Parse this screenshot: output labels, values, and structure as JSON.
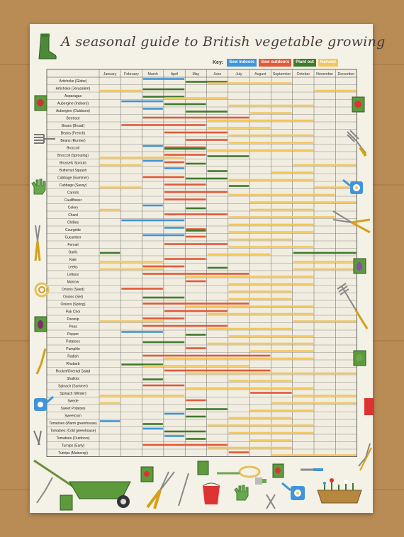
{
  "title": "A seasonal guide to British vegetable growing",
  "key": {
    "label": "Key:",
    "items": [
      {
        "label": "Sow indoors",
        "color": "#3f95d8"
      },
      {
        "label": "Sow outdoors",
        "color": "#e0593a"
      },
      {
        "label": "Plant out",
        "color": "#3f7a2f"
      },
      {
        "label": "Harvest",
        "color": "#f2c75e"
      }
    ]
  },
  "chart_data": {
    "type": "table",
    "months": [
      "January",
      "February",
      "March",
      "April",
      "May",
      "June",
      "July",
      "August",
      "September",
      "October",
      "November",
      "December"
    ],
    "activity_colors": {
      "sow_indoors": "#3f95d8",
      "sow_outdoors": "#e0593a",
      "plant_out": "#3f7a2f",
      "harvest": "#f2c75e"
    },
    "rows": [
      {
        "name": "Artichoke (Globe)",
        "sow_indoors": [
          [
            3,
            4
          ]
        ],
        "plant_out": [
          [
            5,
            6
          ]
        ],
        "harvest": [
          [
            6,
            9
          ]
        ]
      },
      {
        "name": "Artichoke (Jerusalem)",
        "plant_out": [
          [
            3,
            4
          ]
        ],
        "harvest": [
          [
            1,
            2
          ],
          [
            11,
            12
          ]
        ]
      },
      {
        "name": "Asparagus",
        "plant_out": [
          [
            3,
            4
          ]
        ],
        "harvest": [
          [
            4,
            6
          ]
        ]
      },
      {
        "name": "Aubergine (Indoors)",
        "sow_indoors": [
          [
            2,
            3
          ]
        ],
        "plant_out": [
          [
            4,
            5
          ]
        ],
        "harvest": [
          [
            7,
            10
          ]
        ]
      },
      {
        "name": "Aubergine (Outdoors)",
        "sow_indoors": [
          [
            3,
            3
          ]
        ],
        "plant_out": [
          [
            5,
            6
          ]
        ],
        "harvest": [
          [
            8,
            9
          ]
        ]
      },
      {
        "name": "Beetroot",
        "sow_outdoors": [
          [
            3,
            7
          ]
        ],
        "harvest": [
          [
            6,
            10
          ]
        ]
      },
      {
        "name": "Beans (Broad)",
        "sow_outdoors": [
          [
            2,
            5
          ]
        ],
        "harvest": [
          [
            6,
            8
          ]
        ]
      },
      {
        "name": "Beans (French)",
        "sow_outdoors": [
          [
            4,
            6
          ]
        ],
        "harvest": [
          [
            7,
            10
          ]
        ]
      },
      {
        "name": "Beans (Runner)",
        "sow_outdoors": [
          [
            5,
            6
          ]
        ],
        "harvest": [
          [
            7,
            10
          ]
        ]
      },
      {
        "name": "Broccoli",
        "sow_indoors": [
          [
            3,
            3
          ]
        ],
        "sow_outdoors": [
          [
            4,
            5
          ]
        ],
        "plant_out": [
          [
            4,
            5
          ]
        ],
        "harvest": [
          [
            6,
            10
          ]
        ]
      },
      {
        "name": "Broccoli (Sprouting)",
        "sow_outdoors": [
          [
            4,
            5
          ]
        ],
        "plant_out": [
          [
            6,
            7
          ]
        ],
        "harvest": [
          [
            1,
            4
          ]
        ]
      },
      {
        "name": "Brussels Sprouts",
        "sow_indoors": [
          [
            3,
            3
          ]
        ],
        "sow_outdoors": [
          [
            4,
            4
          ]
        ],
        "plant_out": [
          [
            5,
            5
          ]
        ],
        "harvest": [
          [
            1,
            2
          ],
          [
            10,
            12
          ]
        ]
      },
      {
        "name": "Butternut Squash",
        "sow_indoors": [
          [
            4,
            4
          ]
        ],
        "plant_out": [
          [
            6,
            6
          ]
        ],
        "harvest": [
          [
            9,
            10
          ]
        ]
      },
      {
        "name": "Cabbage (Summer)",
        "sow_outdoors": [
          [
            3,
            4
          ]
        ],
        "plant_out": [
          [
            5,
            6
          ]
        ],
        "harvest": [
          [
            7,
            10
          ]
        ]
      },
      {
        "name": "Cabbage (Savoy)",
        "sow_outdoors": [
          [
            4,
            5
          ]
        ],
        "plant_out": [
          [
            7,
            7
          ]
        ],
        "harvest": [
          [
            1,
            2
          ],
          [
            11,
            12
          ]
        ]
      },
      {
        "name": "Carrots",
        "sow_outdoors": [
          [
            4,
            6
          ]
        ],
        "harvest": [
          [
            7,
            11
          ]
        ]
      },
      {
        "name": "Cauliflower",
        "sow_outdoors": [
          [
            4,
            5
          ]
        ],
        "harvest": [
          [
            8,
            12
          ]
        ]
      },
      {
        "name": "Celery",
        "sow_indoors": [
          [
            3,
            3
          ]
        ],
        "plant_out": [
          [
            5,
            5
          ]
        ],
        "harvest": [
          [
            1,
            1
          ],
          [
            8,
            10
          ]
        ]
      },
      {
        "name": "Chard",
        "sow_outdoors": [
          [
            4,
            6
          ]
        ],
        "harvest": [
          [
            7,
            11
          ]
        ]
      },
      {
        "name": "Chillies",
        "sow_indoors": [
          [
            2,
            4
          ]
        ],
        "harvest": [
          [
            7,
            10
          ]
        ]
      },
      {
        "name": "Courgette",
        "sow_indoors": [
          [
            4,
            4
          ]
        ],
        "sow_outdoors": [
          [
            5,
            5
          ]
        ],
        "plant_out": [
          [
            5,
            5
          ]
        ],
        "harvest": [
          [
            7,
            10
          ]
        ]
      },
      {
        "name": "Cucumber",
        "sow_indoors": [
          [
            3,
            4
          ]
        ],
        "sow_outdoors": [
          [
            5,
            5
          ]
        ],
        "harvest": [
          [
            7,
            9
          ]
        ]
      },
      {
        "name": "Fennel",
        "sow_outdoors": [
          [
            4,
            6
          ]
        ],
        "harvest": [
          [
            7,
            10
          ]
        ]
      },
      {
        "name": "Garlic",
        "plant_out": [
          [
            1,
            1
          ],
          [
            10,
            12
          ]
        ],
        "harvest": [
          [
            6,
            8
          ]
        ]
      },
      {
        "name": "Kale",
        "sow_outdoors": [
          [
            4,
            5
          ]
        ],
        "harvest": [
          [
            1,
            3
          ],
          [
            10,
            12
          ]
        ]
      },
      {
        "name": "Leeks",
        "sow_outdoors": [
          [
            3,
            4
          ]
        ],
        "plant_out": [
          [
            6,
            6
          ]
        ],
        "harvest": [
          [
            1,
            3
          ],
          [
            10,
            12
          ]
        ]
      },
      {
        "name": "Lettuce",
        "sow_outdoors": [
          [
            3,
            7
          ]
        ],
        "harvest": [
          [
            5,
            10
          ]
        ]
      },
      {
        "name": "Marrow",
        "sow_outdoors": [
          [
            5,
            5
          ]
        ],
        "harvest": [
          [
            7,
            10
          ]
        ]
      },
      {
        "name": "Onions (Seed)",
        "sow_outdoors": [
          [
            2,
            3
          ]
        ],
        "harvest": [
          [
            7,
            9
          ]
        ]
      },
      {
        "name": "Onions (Set)",
        "plant_out": [
          [
            3,
            4
          ]
        ],
        "harvest": [
          [
            7,
            9
          ]
        ]
      },
      {
        "name": "Onions (Spring)",
        "sow_outdoors": [
          [
            3,
            7
          ]
        ],
        "harvest": [
          [
            5,
            10
          ]
        ]
      },
      {
        "name": "Pak Choi",
        "sow_outdoors": [
          [
            4,
            6
          ]
        ],
        "harvest": [
          [
            6,
            10
          ]
        ]
      },
      {
        "name": "Parsnip",
        "sow_outdoors": [
          [
            3,
            4
          ]
        ],
        "harvest": [
          [
            1,
            3
          ],
          [
            10,
            12
          ]
        ]
      },
      {
        "name": "Peas",
        "sow_outdoors": [
          [
            3,
            6
          ]
        ],
        "harvest": [
          [
            6,
            9
          ]
        ]
      },
      {
        "name": "Pepper",
        "sow_indoors": [
          [
            2,
            3
          ]
        ],
        "plant_out": [
          [
            5,
            5
          ]
        ],
        "harvest": [
          [
            7,
            10
          ]
        ]
      },
      {
        "name": "Potatoes",
        "plant_out": [
          [
            3,
            4
          ]
        ],
        "harvest": [
          [
            6,
            10
          ]
        ]
      },
      {
        "name": "Pumpkin",
        "sow_outdoors": [
          [
            5,
            5
          ]
        ],
        "harvest": [
          [
            8,
            10
          ]
        ]
      },
      {
        "name": "Radish",
        "sow_outdoors": [
          [
            3,
            8
          ]
        ],
        "harvest": [
          [
            4,
            10
          ]
        ]
      },
      {
        "name": "Rhubarb",
        "plant_out": [
          [
            2,
            3
          ]
        ],
        "harvest": [
          [
            3,
            7
          ]
        ]
      },
      {
        "name": "Rocket/Oriental Salad",
        "sow_outdoors": [
          [
            4,
            8
          ]
        ],
        "harvest": [
          [
            5,
            12
          ]
        ]
      },
      {
        "name": "Shallots",
        "plant_out": [
          [
            3,
            3
          ]
        ],
        "harvest": [
          [
            7,
            9
          ]
        ]
      },
      {
        "name": "Spinach (Summer)",
        "sow_outdoors": [
          [
            3,
            4
          ]
        ],
        "harvest": [
          [
            5,
            10
          ]
        ]
      },
      {
        "name": "Spinach (Winter)",
        "sow_outdoors": [
          [
            8,
            9
          ]
        ],
        "harvest": [
          [
            1,
            4
          ],
          [
            10,
            12
          ]
        ]
      },
      {
        "name": "Swede",
        "sow_outdoors": [
          [
            5,
            5
          ]
        ],
        "harvest": [
          [
            1,
            1
          ],
          [
            9,
            12
          ]
        ]
      },
      {
        "name": "Sweet Potatoes",
        "plant_out": [
          [
            5,
            6
          ]
        ],
        "harvest": [
          [
            8,
            10
          ]
        ]
      },
      {
        "name": "Sweetcorn",
        "sow_indoors": [
          [
            4,
            4
          ]
        ],
        "plant_out": [
          [
            5,
            5
          ]
        ],
        "harvest": [
          [
            7,
            9
          ]
        ]
      },
      {
        "name": "Tomatoes (Warm greenhouse)",
        "sow_indoors": [
          [
            1,
            1
          ]
        ],
        "plant_out": [
          [
            3,
            3
          ]
        ],
        "harvest": [
          [
            6,
            10
          ]
        ]
      },
      {
        "name": "Tomatoes (Cold greenhouse)",
        "sow_indoors": [
          [
            3,
            3
          ]
        ],
        "plant_out": [
          [
            4,
            5
          ]
        ],
        "harvest": [
          [
            7,
            10
          ]
        ]
      },
      {
        "name": "Tomatoes (Outdoors)",
        "sow_indoors": [
          [
            4,
            4
          ]
        ],
        "plant_out": [
          [
            5,
            5
          ]
        ],
        "harvest": [
          [
            8,
            9
          ]
        ]
      },
      {
        "name": "Turnips (Early)",
        "sow_outdoors": [
          [
            3,
            6
          ]
        ],
        "harvest": [
          [
            6,
            9
          ]
        ]
      },
      {
        "name": "Turnips (Maincrop)",
        "sow_outdoors": [
          [
            7,
            7
          ]
        ],
        "harvest": [
          [
            9,
            12
          ]
        ]
      }
    ]
  },
  "decorations": [
    "wellington-boot-icon",
    "seed-packet-icon",
    "garden-fork-icon",
    "gardening-gloves-icon",
    "watering-can-icon",
    "pruning-shears-icon",
    "garden-rake-icon",
    "hose-reel-icon",
    "trowel-icon",
    "bucket-icon",
    "wheelbarrow-icon",
    "planter-icon"
  ]
}
